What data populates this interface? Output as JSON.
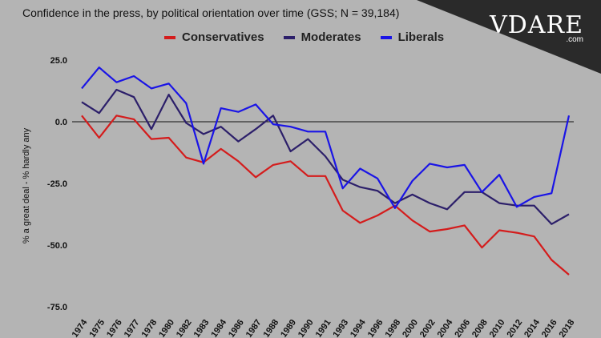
{
  "title": "Confidence in the press, by political orientation over time (GSS; N = 39,184)",
  "logo": {
    "text": "VDARE",
    "sub": ".com"
  },
  "chart_data": {
    "type": "line",
    "ylabel": "% a great deal - % hardly any",
    "xlabel": "",
    "ylim": [
      -75,
      25
    ],
    "yticks": [
      "25.0",
      "0.0",
      "-25.0",
      "-50.0",
      "-75.0"
    ],
    "ytick_values": [
      25,
      0,
      -25,
      -50,
      -75
    ],
    "legend_position": "top",
    "categories": [
      "1974",
      "1975",
      "1976",
      "1977",
      "1978",
      "1980",
      "1982",
      "1983",
      "1984",
      "1986",
      "1987",
      "1988",
      "1989",
      "1990",
      "1991",
      "1993",
      "1994",
      "1996",
      "1998",
      "2000",
      "2002",
      "2004",
      "2006",
      "2008",
      "2010",
      "2012",
      "2014",
      "2016",
      "2018"
    ],
    "series": [
      {
        "name": "Conservatives",
        "color": "#d41c1c",
        "values": [
          2.5,
          -6.5,
          2.5,
          1,
          -7,
          -6.5,
          -14.5,
          -16.5,
          -11,
          -16,
          -22.5,
          -17.5,
          -16,
          -22,
          -22,
          -36,
          -41,
          -38,
          -34,
          -40,
          -44.5,
          -43.5,
          -42,
          -51,
          -44,
          -45,
          -46.5,
          -56,
          -62
        ]
      },
      {
        "name": "Moderates",
        "color": "#2c1f6a",
        "values": [
          8,
          3.5,
          13,
          10,
          -3,
          11,
          -0.5,
          -5,
          -2,
          -8,
          -3,
          2.5,
          -12,
          -7,
          -14,
          -23.5,
          -26.5,
          -28,
          -33,
          -29.5,
          -33,
          -35.5,
          -28.5,
          -28.5,
          -33,
          -34,
          -34,
          -41.5,
          -37.5
        ]
      },
      {
        "name": "Liberals",
        "color": "#1a14e6",
        "values": [
          13.5,
          22,
          16,
          18.5,
          13.5,
          15.5,
          7.5,
          -17,
          5.5,
          4,
          7,
          -1,
          -2,
          -4,
          -4,
          -27,
          -19,
          -23,
          -35,
          -24,
          -17,
          -18.5,
          -17.5,
          -28.5,
          -21.5,
          -34.5,
          -30.5,
          -29,
          2.5
        ]
      }
    ]
  }
}
